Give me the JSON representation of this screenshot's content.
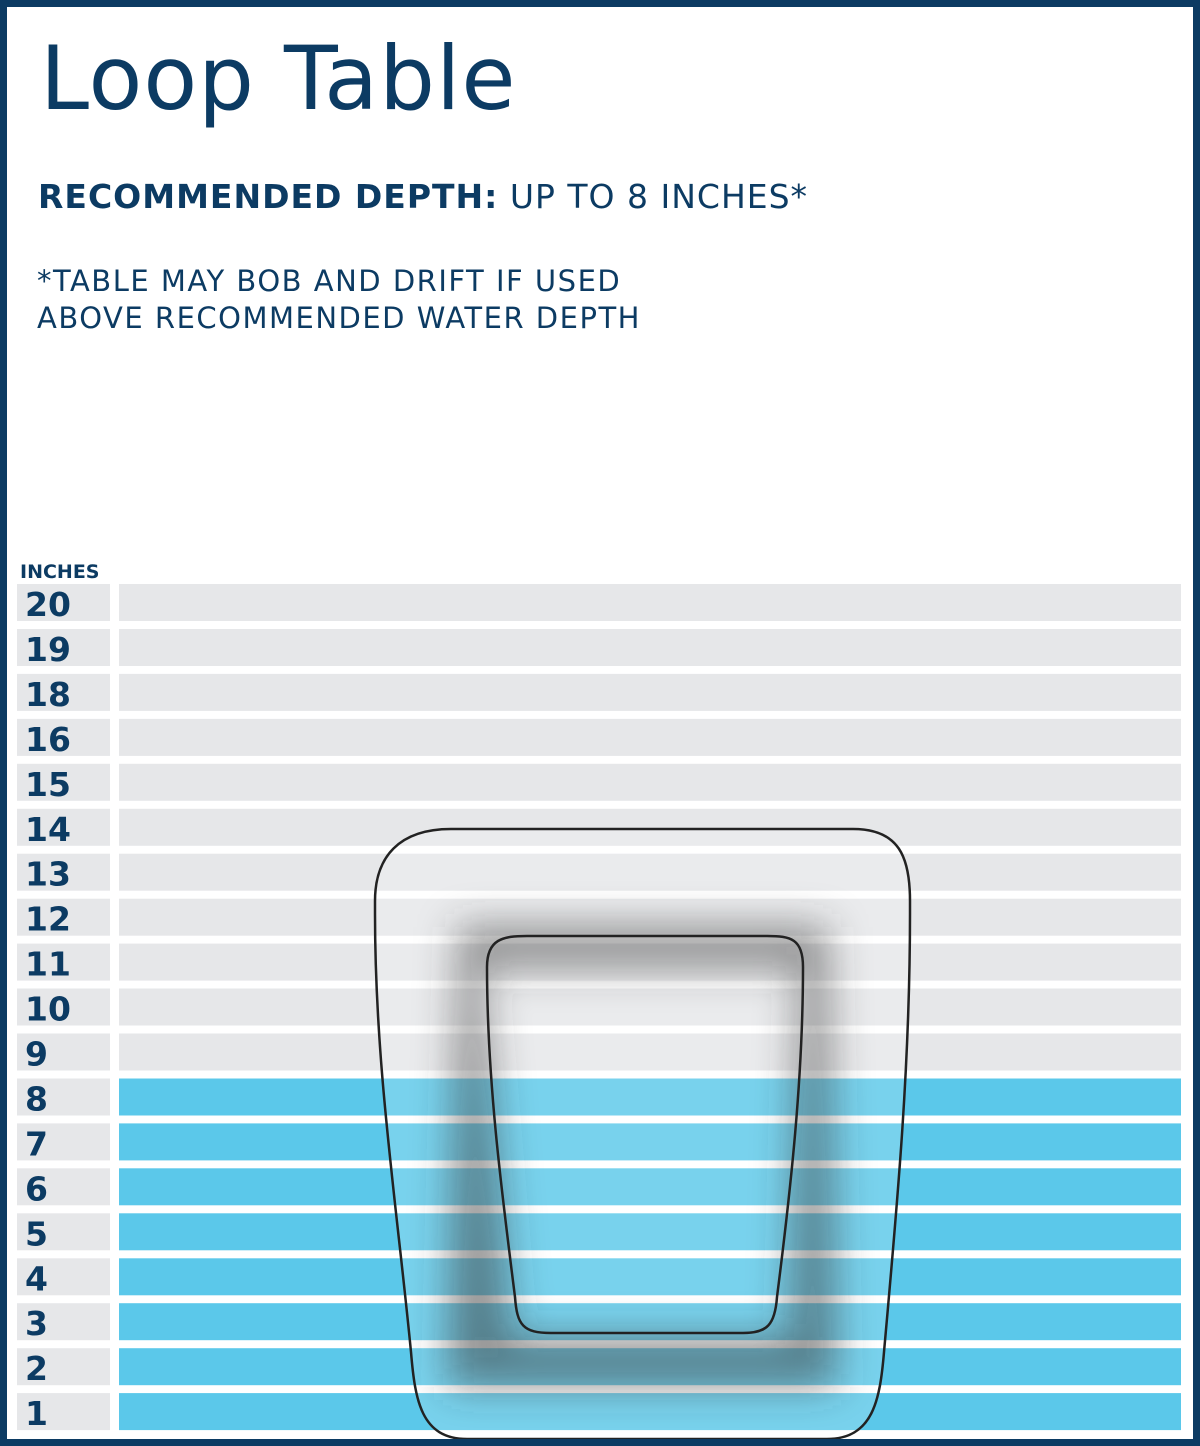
{
  "title": "Loop Table",
  "recommended_depth": {
    "label": "RECOMMENDED DEPTH:",
    "value": "UP TO 8 INCHES*"
  },
  "footnote": {
    "line1": "*TABLE MAY BOB AND DRIFT IF USED",
    "line2": "ABOVE RECOMMENDED WATER DEPTH"
  },
  "scale": {
    "unit_label": "INCHES",
    "marks": [
      "20",
      "19",
      "18",
      "16",
      "15",
      "14",
      "13",
      "12",
      "11",
      "10",
      "9",
      "8",
      "7",
      "6",
      "5",
      "4",
      "3",
      "2",
      "1"
    ],
    "water_depth_inches": 8
  },
  "colors": {
    "navy": "#0c3b63",
    "water": "#5bc8ea",
    "dry": "#e6e7e9",
    "background": "#ffffff"
  },
  "product_icon": "loop-table-icon"
}
